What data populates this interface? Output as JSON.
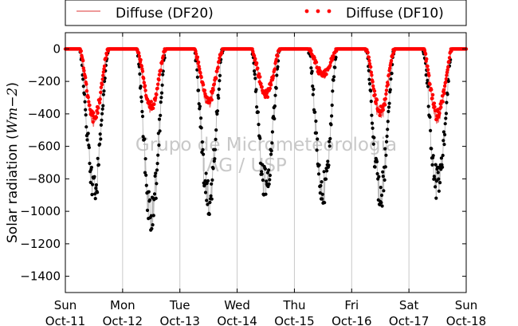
{
  "chart_data": {
    "type": "line",
    "title": "",
    "xlabel": "",
    "ylabel": "Solar radiation ($Wm{-2}$)",
    "ylabel_parts": {
      "prefix": "Solar radiation (",
      "math": "Wm−2",
      "suffix": ")"
    },
    "ylim": [
      -1500,
      100
    ],
    "yticks": [
      0,
      -200,
      -400,
      -600,
      -800,
      -1000,
      -1200,
      -1400
    ],
    "xlim": [
      0,
      7
    ],
    "grid": "vertical lines at day boundaries",
    "legend_placement": "top, above plot",
    "x_ticks": [
      {
        "day": "Sun",
        "date": "Oct-11"
      },
      {
        "day": "Mon",
        "date": "Oct-12"
      },
      {
        "day": "Tue",
        "date": "Oct-13"
      },
      {
        "day": "Wed",
        "date": "Oct-14"
      },
      {
        "day": "Thu",
        "date": "Oct-15"
      },
      {
        "day": "Fri",
        "date": "Oct-16"
      },
      {
        "day": "Sat",
        "date": "Oct-17"
      },
      {
        "day": "Sun",
        "date": "Oct-18"
      }
    ],
    "x_unit": "days since Oct-11 00:00",
    "daily_minima": [
      {
        "date": "Oct-11",
        "global_min": -960,
        "df20_min": -480,
        "df10_min": -470
      },
      {
        "date": "Oct-12",
        "global_min": -1140,
        "df20_min": -400,
        "df10_min": -380
      },
      {
        "date": "Oct-13",
        "global_min": -1050,
        "df20_min": -360,
        "df10_min": -340
      },
      {
        "date": "Oct-14",
        "global_min": -960,
        "df20_min": -300,
        "df10_min": -300
      },
      {
        "date": "Oct-15",
        "global_min": -980,
        "df20_min": -180,
        "df10_min": -170
      },
      {
        "date": "Oct-16",
        "global_min": -1000,
        "df20_min": -440,
        "df10_min": -420
      },
      {
        "date": "Oct-17",
        "global_min": -950,
        "df20_min": -460,
        "df10_min": -430
      }
    ],
    "series": [
      {
        "name": "Diffuse (DF20)",
        "color": "#e87979",
        "style": "line"
      },
      {
        "name": "Diffuse (DF10)",
        "color": "#ff0000",
        "style": "dots"
      },
      {
        "color": "#000000",
        "style": "dots",
        "line_color": "#bbbbbb"
      }
    ],
    "watermark": [
      "Grupo de Micrometeorologia",
      "IAG / USP"
    ]
  }
}
